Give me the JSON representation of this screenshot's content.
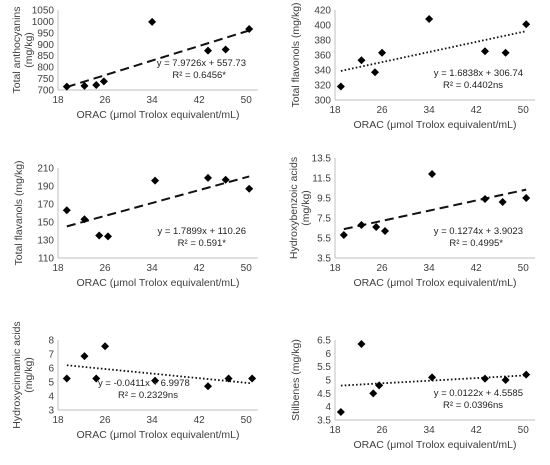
{
  "chart_data": [
    {
      "type": "scatter",
      "xlabel": "ORAC (μmol Trolox equivalent/mL)",
      "ylabel": "Total anthocyanins (mg/kg)",
      "xlim": [
        18,
        52
      ],
      "ylim": [
        700,
        1050
      ],
      "xticks": [
        18,
        26,
        34,
        42,
        50
      ],
      "yticks": [
        700,
        750,
        800,
        850,
        900,
        950,
        1000,
        1050
      ],
      "x": [
        19.5,
        22.5,
        24.5,
        25.8,
        34,
        43.5,
        46.5,
        50.5
      ],
      "y": [
        715,
        718,
        722,
        738,
        998,
        872,
        877,
        967
      ],
      "trendline": {
        "style": "dashed",
        "slope": 7.9726,
        "intercept": 557.73,
        "x_range": [
          19.5,
          50.5
        ]
      },
      "equation": "y = 7.9726x + 557.73",
      "r_squared": "R² = 0.6456*",
      "annotation_position": "bottom-right",
      "grid": false
    },
    {
      "type": "scatter",
      "xlabel": "ORAC (μmol Trolox equivalent/mL)",
      "ylabel": "Total flavonols (mg/kg)",
      "xlim": [
        18,
        52
      ],
      "ylim": [
        300,
        420
      ],
      "xticks": [
        18,
        26,
        34,
        42,
        50
      ],
      "yticks": [
        300,
        320,
        340,
        360,
        380,
        400,
        420
      ],
      "x": [
        19,
        22.5,
        24.8,
        26,
        34,
        43.5,
        47,
        50.5
      ],
      "y": [
        318,
        353,
        337,
        363,
        408,
        365,
        363,
        401
      ],
      "trendline": {
        "style": "dotted",
        "slope": 1.6838,
        "intercept": 306.74,
        "x_range": [
          19,
          50.5
        ]
      },
      "equation": "y = 1.6838x + 306.74",
      "r_squared": "R² = 0.4402ns",
      "annotation_position": "bottom-right",
      "grid": false
    },
    {
      "type": "scatter",
      "xlabel": "ORAC (μmol Trolox equivalent/mL)",
      "ylabel": "Total flavanols (mg/kg)",
      "xlim": [
        18,
        52
      ],
      "ylim": [
        110,
        210
      ],
      "xticks": [
        18,
        26,
        34,
        42,
        50
      ],
      "yticks": [
        110,
        130,
        150,
        170,
        190,
        210
      ],
      "x": [
        19.5,
        22.5,
        25,
        26.5,
        34.5,
        43.5,
        46.5,
        50.5
      ],
      "y": [
        163,
        153,
        135,
        134,
        196,
        199,
        197,
        187
      ],
      "trendline": {
        "style": "dashed",
        "slope": 1.7899,
        "intercept": 110.26,
        "x_range": [
          19.5,
          50.5
        ]
      },
      "equation": "y = 1.7899x + 110.26",
      "r_squared": "R² = 0.591*",
      "annotation_position": "bottom-right",
      "grid": false
    },
    {
      "type": "scatter",
      "xlabel": "ORAC (μmol Trolox equivalent/mL)",
      "ylabel": "Hydroxybenzoic acids (mg/kg)",
      "xlim": [
        18,
        52
      ],
      "ylim": [
        3.5,
        13.5
      ],
      "xticks": [
        18,
        26,
        34,
        42,
        50
      ],
      "yticks": [
        3.5,
        5.5,
        7.5,
        9.5,
        11.5,
        13.5
      ],
      "x": [
        19.5,
        22.5,
        25,
        26.5,
        34.5,
        43.5,
        46.5,
        50.5
      ],
      "y": [
        5.8,
        6.8,
        6.6,
        6.2,
        11.9,
        9.4,
        9.1,
        9.5
      ],
      "trendline": {
        "style": "dashed",
        "slope": 0.1274,
        "intercept": 3.9023,
        "x_range": [
          19.5,
          50.5
        ]
      },
      "equation": "y = 0.1274x + 3.9023",
      "r_squared": "R² = 0.4995*",
      "annotation_position": "bottom-right",
      "grid": false
    },
    {
      "type": "scatter",
      "xlabel": "ORAC (μmol Trolox equivalent/mL)",
      "ylabel": "Hydroxycinnamic acids (mg/kg)",
      "xlim": [
        18,
        52
      ],
      "ylim": [
        3,
        8
      ],
      "xticks": [
        18,
        26,
        34,
        42,
        50
      ],
      "yticks": [
        3,
        4,
        5,
        6,
        7,
        8
      ],
      "x": [
        19.5,
        22.5,
        24.5,
        26,
        34.5,
        43.5,
        47,
        51
      ],
      "y": [
        5.25,
        6.85,
        5.25,
        7.55,
        5.1,
        4.7,
        5.25,
        5.25
      ],
      "trendline": {
        "style": "dotted",
        "slope": -0.0411,
        "intercept": 6.9978,
        "x_range": [
          19.5,
          51
        ]
      },
      "equation": "y = -0.0411x + 6.9978",
      "r_squared": "R² = 0.2329ns",
      "annotation_position": "bottom-left",
      "grid": false
    },
    {
      "type": "scatter",
      "xlabel": "ORAC (μmol Trolox equivalent/mL)",
      "ylabel": "Stilbenes (mg/kg)",
      "xlim": [
        18,
        52
      ],
      "ylim": [
        3.5,
        6.5
      ],
      "xticks": [
        18,
        26,
        34,
        42,
        50
      ],
      "yticks": [
        3.5,
        4,
        4.5,
        5,
        5.5,
        6,
        6.5
      ],
      "x": [
        19,
        22.5,
        24.5,
        25.5,
        34.5,
        43.5,
        47,
        50.5
      ],
      "y": [
        3.8,
        6.35,
        4.5,
        4.8,
        5.1,
        5.05,
        5.0,
        5.2
      ],
      "trendline": {
        "style": "dotted",
        "slope": 0.0122,
        "intercept": 4.5585,
        "x_range": [
          19,
          50.5
        ]
      },
      "equation": "y = 0.0122x + 4.5585",
      "r_squared": "R² = 0.0396ns",
      "annotation_position": "bottom-right",
      "grid": false
    }
  ]
}
